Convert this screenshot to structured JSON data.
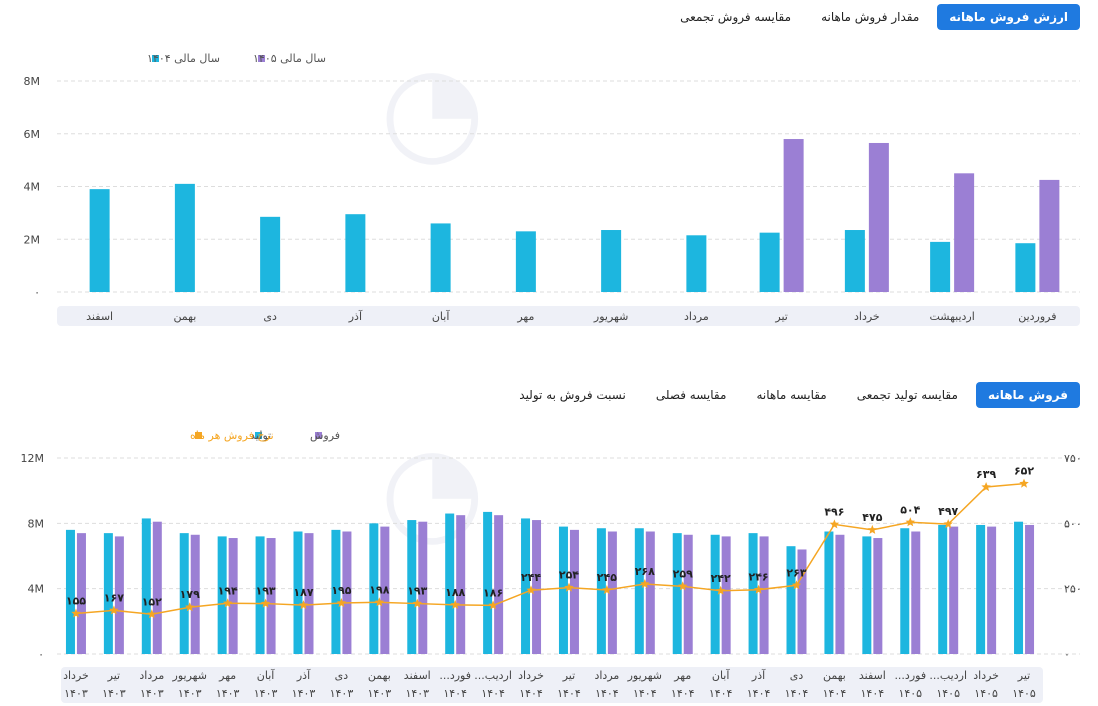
{
  "top_tabs": [
    "ارزش فروش ماهانه",
    "مقدار فروش ماهانه",
    "مقایسه فروش تجمعی"
  ],
  "bottom_tabs": [
    "فروش ماهانه",
    "مقایسه تولید تجمعی",
    "مقایسه ماهانه",
    "مقایسه فصلی",
    "نسبت فروش به تولید"
  ],
  "colors": {
    "cyan": "#1db6df",
    "purple": "#9b7fd4",
    "orange": "#f5a623",
    "accent": "#1f7ae0",
    "axis_band": "#eef0f7"
  },
  "chart_data": [
    {
      "type": "bar",
      "categories": [
        "فروردین",
        "اردیبهشت",
        "خرداد",
        "تیر",
        "مرداد",
        "شهریور",
        "مهر",
        "آبان",
        "آذر",
        "دی",
        "بهمن",
        "اسفند"
      ],
      "series": [
        {
          "name": "سال مالی ۱۴۰۴",
          "color": "#1db6df",
          "values": [
            1.85,
            1.9,
            2.35,
            2.25,
            2.15,
            2.35,
            2.3,
            2.6,
            2.95,
            2.85,
            4.1,
            3.9
          ]
        },
        {
          "name": "سال مالی ۱۴۰۵",
          "color": "#9b7fd4",
          "values": [
            4.25,
            4.5,
            5.65,
            5.8,
            null,
            null,
            null,
            null,
            null,
            null,
            null,
            null
          ]
        }
      ],
      "ylim": [
        0,
        8
      ],
      "yticks": [
        0,
        2,
        4,
        6,
        8
      ],
      "ytick_labels": [
        "۰",
        "2M",
        "4M",
        "6M",
        "8M"
      ],
      "legend": "top-left",
      "grid": true
    },
    {
      "type": "bar",
      "categories": [
        [
          "خرداد",
          "۱۴۰۳"
        ],
        [
          "تیر",
          "۱۴۰۳"
        ],
        [
          "مرداد",
          "۱۴۰۳"
        ],
        [
          "شهریور",
          "۱۴۰۳"
        ],
        [
          "مهر",
          "۱۴۰۳"
        ],
        [
          "آبان",
          "۱۴۰۳"
        ],
        [
          "آذر",
          "۱۴۰۳"
        ],
        [
          "دی",
          "۱۴۰۳"
        ],
        [
          "بهمن",
          "۱۴۰۳"
        ],
        [
          "اسفند",
          "۱۴۰۳"
        ],
        [
          "فورد...",
          "۱۴۰۴"
        ],
        [
          "اردیب...",
          "۱۴۰۴"
        ],
        [
          "خرداد",
          "۱۴۰۴"
        ],
        [
          "تیر",
          "۱۴۰۴"
        ],
        [
          "مرداد",
          "۱۴۰۴"
        ],
        [
          "شهریور",
          "۱۴۰۴"
        ],
        [
          "مهر",
          "۱۴۰۴"
        ],
        [
          "آبان",
          "۱۴۰۴"
        ],
        [
          "آذر",
          "۱۴۰۴"
        ],
        [
          "دی",
          "۱۴۰۴"
        ],
        [
          "بهمن",
          "۱۴۰۴"
        ],
        [
          "اسفند",
          "۱۴۰۴"
        ],
        [
          "فورد...",
          "۱۴۰۵"
        ],
        [
          "اردیب...",
          "۱۴۰۵"
        ],
        [
          "خرداد",
          "۱۴۰۵"
        ],
        [
          "تیر",
          "۱۴۰۵"
        ]
      ],
      "series": [
        {
          "name": "تولید",
          "color": "#1db6df",
          "axis": "left",
          "values": [
            7.6,
            7.4,
            8.3,
            7.4,
            7.2,
            7.2,
            7.5,
            7.6,
            8.0,
            8.2,
            8.6,
            8.7,
            8.3,
            7.8,
            7.7,
            7.7,
            7.4,
            7.3,
            7.4,
            6.6,
            7.5,
            7.2,
            7.7,
            7.9,
            7.9,
            8.1
          ]
        },
        {
          "name": "فروش",
          "color": "#9b7fd4",
          "axis": "left",
          "values": [
            7.4,
            7.2,
            8.1,
            7.3,
            7.1,
            7.1,
            7.4,
            7.5,
            7.8,
            8.1,
            8.5,
            8.5,
            8.2,
            7.6,
            7.5,
            7.5,
            7.3,
            7.2,
            7.2,
            6.4,
            7.3,
            7.1,
            7.5,
            7.8,
            7.8,
            7.9
          ]
        },
        {
          "name": "نرخ فروش هر ماه",
          "color": "#f5a623",
          "axis": "right",
          "type": "line",
          "values": [
            155,
            167,
            152,
            179,
            194,
            193,
            187,
            195,
            198,
            193,
            188,
            186,
            244,
            254,
            245,
            268,
            259,
            242,
            246,
            263,
            496,
            475,
            504,
            497,
            639,
            652
          ],
          "labels": [
            "۱۵۵",
            "۱۶۷",
            "۱۵۲",
            "۱۷۹",
            "۱۹۴",
            "۱۹۳",
            "۱۸۷",
            "۱۹۵",
            "۱۹۸",
            "۱۹۳",
            "۱۸۸",
            "۱۸۶",
            "۲۴۴",
            "۲۵۴",
            "۲۴۵",
            "۲۶۸",
            "۲۵۹",
            "۲۴۲",
            "۲۴۶",
            "۲۶۳",
            "۴۹۶",
            "۴۷۵",
            "۵۰۴",
            "۴۹۷",
            "۶۳۹",
            "۶۵۲"
          ]
        }
      ],
      "ylim": [
        0,
        12
      ],
      "yticks": [
        0,
        4,
        8,
        12
      ],
      "ytick_labels": [
        "۰",
        "4M",
        "8M",
        "12M"
      ],
      "y2lim": [
        0,
        750
      ],
      "y2ticks": [
        0,
        250,
        500,
        750
      ],
      "y2tick_labels": [
        "۰",
        "۲۵۰",
        "۵۰۰",
        "۷۵۰"
      ],
      "legend": "top-left",
      "grid": true
    }
  ]
}
